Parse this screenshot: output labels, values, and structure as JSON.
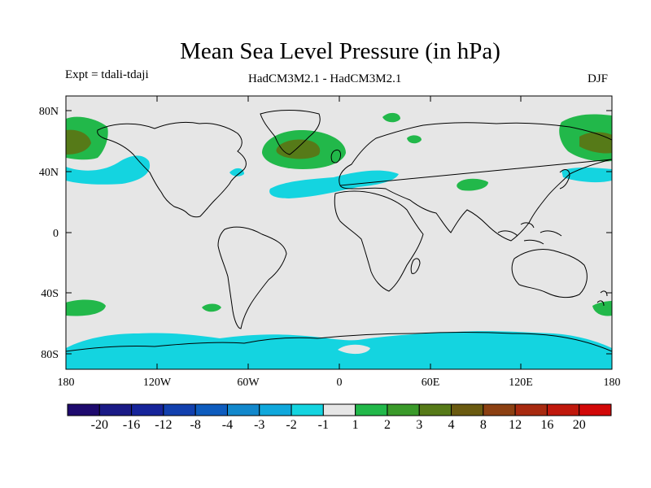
{
  "title": "Mean Sea Level Pressure (in hPa)",
  "experiment": "Expt = tdali-tdaji",
  "models": "HadCM3M2.1 - HadCM3M2.1",
  "season": "DJF",
  "lat_labels": [
    "80N",
    "40N",
    "0",
    "40S",
    "80S"
  ],
  "lon_labels": [
    "180",
    "120W",
    "60W",
    "0",
    "60E",
    "120E",
    "180"
  ],
  "colorbar": {
    "labels": [
      "-20",
      "-16",
      "-12",
      "-8",
      "-4",
      "-3",
      "-2",
      "-1",
      "1",
      "2",
      "3",
      "4",
      "8",
      "12",
      "16",
      "20"
    ],
    "colors": [
      "#1e0a6e",
      "#1a1a86",
      "#16249a",
      "#1240ae",
      "#0e5cbe",
      "#1288cc",
      "#10a8dc",
      "#14d4e0",
      "#e6e6e6",
      "#22b84a",
      "#3a9a2a",
      "#567a18",
      "#6a5a10",
      "#8c4012",
      "#a82a10",
      "#c0180c",
      "#d20808"
    ]
  },
  "colors": {
    "background": "#e6e6e6",
    "negative_small": "#14d4e0",
    "positive_small": "#22b84a",
    "positive_medium": "#3a9a2a",
    "positive_large": "#567a18"
  }
}
